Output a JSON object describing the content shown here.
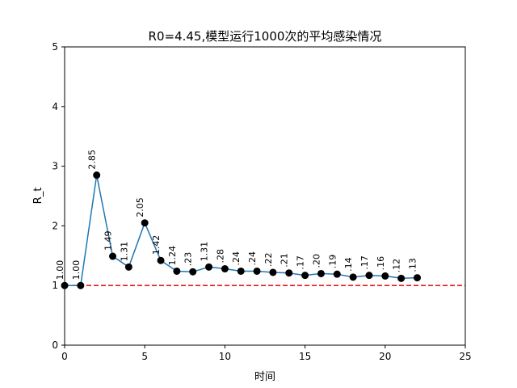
{
  "chart_data": {
    "type": "line",
    "title": "R0=4.45,模型运行1000次的平均感染情况",
    "xlabel": "时间",
    "ylabel": "R_t",
    "xlim": [
      0,
      25
    ],
    "ylim": [
      0,
      5
    ],
    "xticks": [
      0,
      5,
      10,
      15,
      20,
      25
    ],
    "yticks": [
      0,
      1,
      2,
      3,
      4,
      5
    ],
    "grid": false,
    "line_color": "#1f77b4",
    "marker_color": "#000000",
    "reference_line": {
      "y": 1,
      "color": "#e41a1c",
      "style": "dashed"
    },
    "series": [
      {
        "x": [
          0,
          1,
          2,
          3,
          4,
          5,
          6,
          7,
          8,
          9,
          10,
          11,
          12,
          13,
          14,
          15,
          16,
          17,
          18,
          19,
          20,
          21,
          22
        ],
        "values": [
          1.0,
          1.0,
          2.85,
          1.49,
          1.31,
          2.05,
          1.42,
          1.24,
          1.23,
          1.31,
          1.28,
          1.24,
          1.24,
          1.22,
          1.21,
          1.17,
          1.2,
          1.19,
          1.14,
          1.17,
          1.16,
          1.12,
          1.13
        ],
        "labels": [
          "1.00",
          "1.00",
          "2.85",
          "1.49",
          "1.31",
          "2.05",
          "1.42",
          "1.24",
          ".23",
          "1.31",
          ".28",
          ".24",
          ".24",
          ".22",
          ".21",
          ".17",
          ".20",
          ".19",
          ".14",
          ".17",
          ".16",
          ".12",
          ".13"
        ]
      }
    ]
  }
}
